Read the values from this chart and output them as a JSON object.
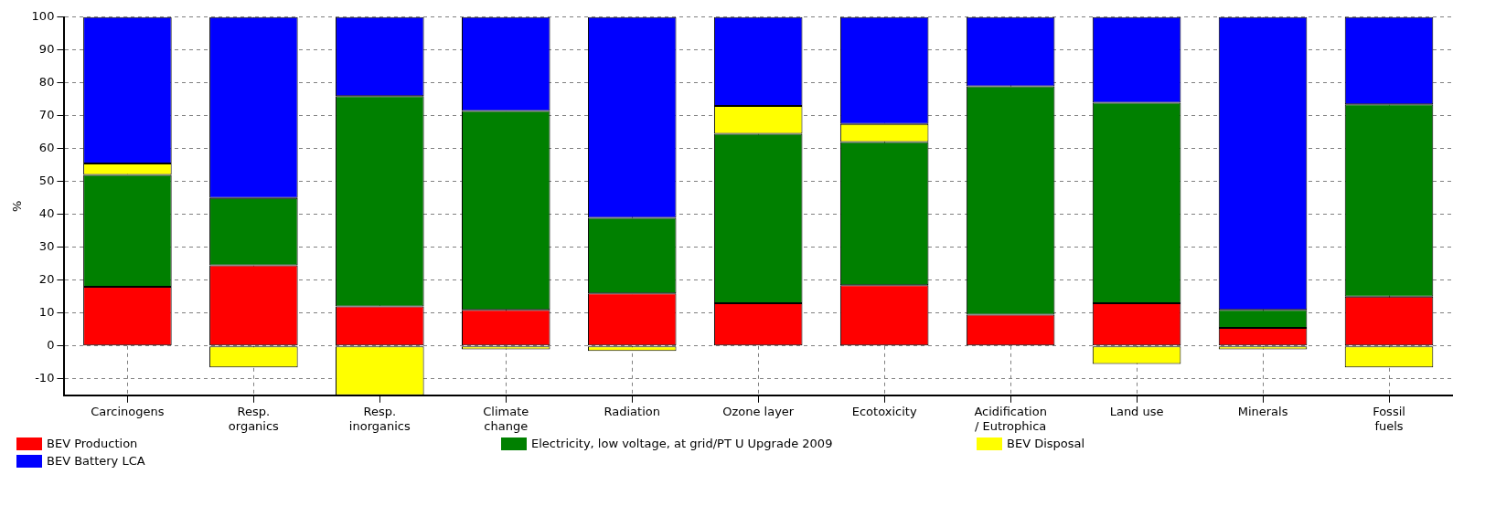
{
  "chart_data": {
    "type": "bar",
    "stacked": true,
    "ylabel": "%",
    "ylim": [
      -15,
      100
    ],
    "yticks": [
      -10,
      0,
      10,
      20,
      30,
      40,
      50,
      60,
      70,
      80,
      90,
      100
    ],
    "grid": true,
    "legend": "bottom left",
    "categories": [
      "Carcinogens",
      "Resp. organics",
      "Resp. inorganics",
      "Climate change",
      "Radiation",
      "Ozone layer",
      "Ecotoxicity",
      "Acidification / Eutrophica",
      "Land use",
      "Minerals",
      "Fossil fuels"
    ],
    "series": [
      {
        "name": "BEV Production",
        "color": "#ff0000",
        "values": [
          18,
          24.5,
          12,
          11,
          16,
          13,
          18.5,
          9.5,
          13,
          5.5,
          15
        ]
      },
      {
        "name": "Electricity, low voltage, at grid/PT U Upgrade 2009",
        "color": "#008000",
        "values": [
          34,
          20.5,
          64,
          60.5,
          23,
          51.5,
          43.5,
          69.5,
          61,
          5.5,
          58.5
        ]
      },
      {
        "name": "BEV Disposal",
        "color": "#ffff00",
        "values": [
          3.5,
          -6.5,
          -15,
          -1,
          -1.5,
          8.5,
          5.5,
          0,
          -5.5,
          -1,
          -6.5
        ]
      },
      {
        "name": "BEV Battery LCA",
        "color": "#0000ff",
        "values": [
          44.5,
          55,
          24,
          28.5,
          61,
          27,
          32.5,
          21,
          26,
          89,
          26.5
        ]
      }
    ]
  }
}
